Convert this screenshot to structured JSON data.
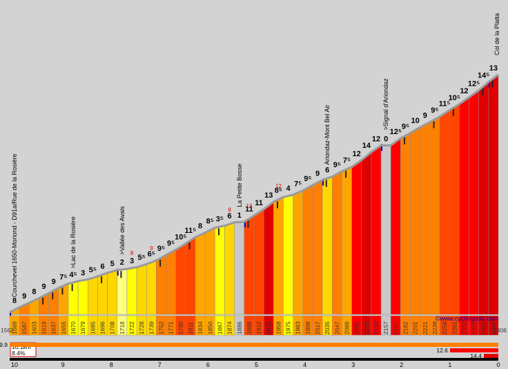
{
  "chart_data": {
    "type": "area",
    "x_axis": {
      "min": 0,
      "max": 10,
      "reversed": true,
      "unit": "km",
      "ticks": [
        "10",
        "9",
        "8",
        "7",
        "6",
        "5",
        "4",
        "3",
        "2",
        "1",
        "0"
      ]
    },
    "y_axis": {
      "min": 1562,
      "max": 2406
    },
    "start_altitude": "1562",
    "end_altitude": "2406",
    "website": "©www.cyclingcols.com",
    "summary": {
      "distance": "10.1km",
      "average_grade": "8.4%"
    },
    "gradient_labels": [
      "8",
      "9",
      "8",
      "9",
      "9",
      "7⁵",
      "4⁵",
      "3",
      "5⁵",
      "6",
      "5",
      "2",
      "3",
      "5⁵",
      "6⁵",
      "9⁵",
      "9⁵",
      "10⁵",
      "11⁵",
      "8",
      "8⁵",
      "3⁵",
      "6",
      "1",
      "11",
      "11",
      "13",
      "8⁵",
      "4",
      "7⁵",
      "9⁵",
      "9",
      "6",
      "9⁵",
      "7⁵",
      "12",
      "14",
      "12",
      "0",
      "12⁵",
      "9⁵",
      "10",
      "9",
      "9⁵",
      "11⁵",
      "10⁵",
      "12",
      "12⁵",
      "14⁵",
      "13"
    ],
    "segments": [
      {
        "alt": "1569",
        "grade": 8,
        "seq": 0
      },
      {
        "alt": "1587",
        "grade": 9,
        "seq": 1
      },
      {
        "alt": "1603",
        "grade": 8,
        "seq": 2
      },
      {
        "alt": "1619",
        "grade": 9,
        "seq": 3
      },
      {
        "alt": "1637",
        "grade": 9,
        "seq": 4
      },
      {
        "alt": "1655",
        "grade": 7.5,
        "seq": 5
      },
      {
        "alt": "1670",
        "grade": 4.5,
        "seq": 6
      },
      {
        "alt": "1679",
        "grade": 3,
        "seq": 7
      },
      {
        "alt": "1685",
        "grade": 5.5,
        "seq": 8
      },
      {
        "alt": "1696",
        "grade": 6,
        "seq": 9
      },
      {
        "alt": "1708",
        "grade": 5,
        "seq": 10
      },
      {
        "alt": "1718",
        "grade": 2,
        "seq": 11
      },
      {
        "alt": "1722",
        "grade": 3,
        "seq": 12
      },
      {
        "alt": "1728",
        "grade": 5.5,
        "seq": 13
      },
      {
        "alt": "1739",
        "grade": 6.5,
        "seq": 14
      },
      {
        "alt": "1752",
        "grade": 9.5,
        "seq": 15
      },
      {
        "alt": "1771",
        "grade": 9.5,
        "seq": 16
      },
      {
        "alt": "1790",
        "grade": 10.5,
        "seq": 17
      },
      {
        "alt": "1811",
        "grade": 11.5,
        "seq": 18
      },
      {
        "alt": "1834",
        "grade": 8,
        "seq": 19
      },
      {
        "alt": "1850",
        "grade": 8.5,
        "seq": 20
      },
      {
        "alt": "1867",
        "grade": 3.5,
        "seq": 21
      },
      {
        "alt": "1874",
        "grade": 6,
        "seq": 22
      },
      {
        "alt": "1886",
        "grade": 1,
        "seq": 23
      },
      {
        "alt": "1888",
        "grade": 11,
        "seq": 24
      },
      {
        "alt": "1910",
        "grade": 11,
        "seq": 25
      },
      {
        "alt": "1932",
        "grade": 13,
        "seq": 26
      },
      {
        "alt": "1958",
        "grade": 8.5,
        "seq": 27
      },
      {
        "alt": "1975",
        "grade": 4,
        "seq": 28
      },
      {
        "alt": "1983",
        "grade": 7.5,
        "seq": 29
      },
      {
        "alt": "1998",
        "grade": 9.5,
        "seq": 30
      },
      {
        "alt": "2017",
        "grade": 9,
        "seq": 31
      },
      {
        "alt": "2035",
        "grade": 6,
        "seq": 32
      },
      {
        "alt": "2047",
        "grade": 9.5,
        "seq": 33
      },
      {
        "alt": "2066",
        "grade": 7.5,
        "seq": 34
      },
      {
        "alt": "2081",
        "grade": 12,
        "seq": 35
      },
      {
        "alt": "2105",
        "grade": 14,
        "seq": 36
      },
      {
        "alt": "2133",
        "grade": 12,
        "seq": 37
      },
      {
        "alt": "2157",
        "grade": 0,
        "seq": 38
      },
      {
        "alt": "2157",
        "grade": 12.5,
        "seq": 39
      },
      {
        "alt": "2182",
        "grade": 9.5,
        "seq": 40
      },
      {
        "alt": "2201",
        "grade": 10,
        "seq": 41
      },
      {
        "alt": "2221",
        "grade": 9,
        "seq": 42
      },
      {
        "alt": "2239",
        "grade": 9.5,
        "seq": 43
      },
      {
        "alt": "2258",
        "grade": 11.5,
        "seq": 44
      },
      {
        "alt": "2281",
        "grade": 10.5,
        "seq": 45
      },
      {
        "alt": "2302",
        "grade": 12,
        "seq": 46
      },
      {
        "alt": "2326",
        "grade": 12.5,
        "seq": 47
      },
      {
        "alt": "2351",
        "grade": 14.5,
        "seq": 48
      },
      {
        "alt": "2380",
        "grade": 13,
        "seq": 49
      }
    ],
    "waypoints": [
      {
        "name": "Courchevel 1650-Moriond - D91a/Rue de la Rosière",
        "seg": 0
      },
      {
        "name": ">Lac de la Rosière",
        "seg": 6
      },
      {
        "name": ">Vallée des Avals",
        "seg": 11
      },
      {
        "name": "La Petite Bosse",
        "seg": 23
      },
      {
        "name": "Ariondaz-Mont Bel Air",
        "seg": 32
      },
      {
        "name": ">Signal d'Ariondaz",
        "seg": 38
      },
      {
        "name": "Col de la Platta",
        "seg": 50
      }
    ],
    "red_markers": [
      {
        "text": "8",
        "seg": 12
      },
      {
        "text": "9",
        "seg": 14
      },
      {
        "text": "8",
        "seg": 22
      },
      {
        "text": "13",
        "seg": 24
      },
      {
        "text": "12",
        "seg": 27
      }
    ],
    "steepest_bars": [
      {
        "label": "9.9",
        "from_km": 10.1,
        "to_km": 0
      },
      {
        "label": "12.6",
        "from_km": 1.0,
        "to_km": 0
      },
      {
        "label": "14.4",
        "from_km": 0.3,
        "to_km": 0
      }
    ],
    "colors": {
      "background": "#d3d3d3",
      "g0": "#c8c8c8",
      "g1": "#ffff80",
      "g2": "#ffff00",
      "g3": "#ffd700",
      "g4": "#ffa500",
      "g5": "#ff8000",
      "g6": "#ff4500",
      "g7": "#ff0000",
      "g8": "#e00000"
    }
  }
}
